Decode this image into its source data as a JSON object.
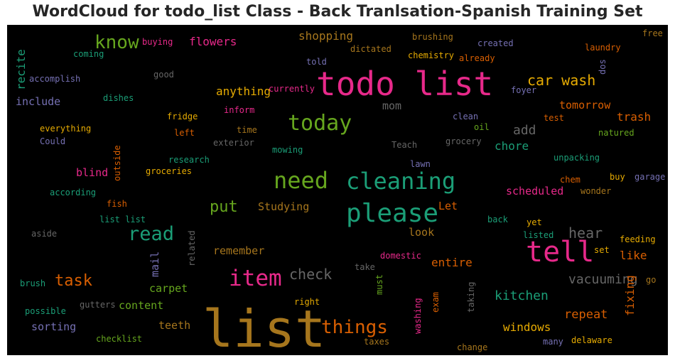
{
  "title": "WordCloud for todo_list Class - Back Tranlsation-Spanish Training Set",
  "words": [
    "todo list",
    "list",
    "tell",
    "please",
    "cleaning",
    "need",
    "today",
    "item",
    "read",
    "know",
    "things",
    "task",
    "car wash",
    "put",
    "check",
    "hear",
    "vacuuming",
    "kitchen",
    "shopping",
    "anything",
    "flowers",
    "tomorrow",
    "trash",
    "add",
    "chore",
    "mom",
    "include",
    "recite",
    "scheduled",
    "blind",
    "Studying",
    "Let",
    "look",
    "remember",
    "entire",
    "like",
    "repeat",
    "fixing",
    "windows",
    "carpet",
    "content",
    "mail",
    "teeth",
    "sorting",
    "brushing",
    "created",
    "laundry",
    "free",
    "dictated",
    "chemistry",
    "already",
    "told",
    "dos",
    "foyer",
    "accomplish",
    "good",
    "coming",
    "buying",
    "currently",
    "inform",
    "dishes",
    "fridge",
    "left",
    "time",
    "everything",
    "Could",
    "exterior",
    "mowing",
    "Teach",
    "grocery",
    "clean",
    "oil",
    "natured",
    "test",
    "research",
    "groceries",
    "outside",
    "fish",
    "according",
    "unpacking",
    "chem",
    "buy",
    "garage",
    "wonder",
    "lawn",
    "list list",
    "aside",
    "related",
    "listed",
    "yet",
    "back",
    "set",
    "domestic",
    "take",
    "must",
    "go",
    "feeding",
    "brush",
    "possible",
    "gutters",
    "right",
    "exam",
    "taking",
    "washing",
    "checklist",
    "taxes",
    "change",
    "many",
    "delaware"
  ],
  "colors": {
    "pink": "#e7298a",
    "teal": "#1b9e77",
    "orange": "#d95f02",
    "purple": "#7570b3",
    "green": "#66a61e",
    "gold": "#e6ab02",
    "brown": "#a6761d",
    "gray": "#666666"
  }
}
